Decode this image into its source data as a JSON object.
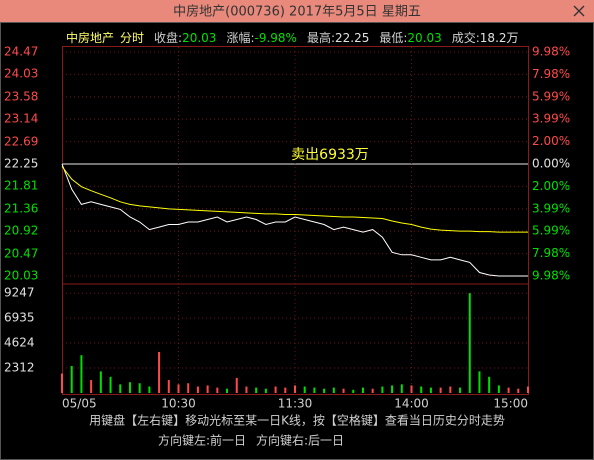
{
  "chart_data": {
    "type": "intraday",
    "title": "中房地产(000736) 2017年5月5日 星期五",
    "header": {
      "name": "中房地产",
      "period": "分时",
      "stats": [
        {
          "label": "收盘:",
          "value": "20.03",
          "color": "#00e000"
        },
        {
          "label": "涨幅:",
          "value": "-9.98%",
          "color": "#00e000"
        },
        {
          "label": "最高:",
          "value": "22.25",
          "color": "#e0e0e0"
        },
        {
          "label": "最低:",
          "value": "20.03",
          "color": "#00e000"
        },
        {
          "label": "成交:",
          "value": "18.2万",
          "color": "#e0e0e0"
        }
      ]
    },
    "annotation": "卖出6933万",
    "up_color": "#ff4a4a",
    "down_color": "#00e000",
    "flat_color": "#e0e0e0",
    "x": [
      0,
      5,
      10,
      15,
      20,
      25,
      30,
      35,
      40,
      45,
      50,
      55,
      60,
      65,
      70,
      75,
      80,
      85,
      90,
      95,
      100,
      105,
      110,
      115,
      120,
      125,
      130,
      135,
      140,
      145,
      150,
      155,
      160,
      165,
      170,
      175,
      180,
      185,
      190,
      195,
      200,
      205,
      210,
      215,
      220,
      225,
      230,
      235,
      240
    ],
    "xlim": [
      0,
      240
    ],
    "xticks": [
      {
        "value": 0,
        "label": "05/05"
      },
      {
        "value": 60,
        "label": "10:30"
      },
      {
        "value": 120,
        "label": "11:30"
      },
      {
        "value": 180,
        "label": "14:00"
      },
      {
        "value": 240,
        "label": "15:00"
      }
    ],
    "ylim": [
      20.03,
      24.47
    ],
    "yticks": [
      24.47,
      24.03,
      23.58,
      23.14,
      22.69,
      22.25,
      21.81,
      21.36,
      20.92,
      20.47,
      20.03
    ],
    "y2lim": [
      -9.98,
      9.98
    ],
    "y2ticks": [
      {
        "value": 9.98,
        "label": "9.98%"
      },
      {
        "value": 7.98,
        "label": "7.98%"
      },
      {
        "value": 5.99,
        "label": "5.99%"
      },
      {
        "value": 3.99,
        "label": "3.99%"
      },
      {
        "value": 2.0,
        "label": "2.00%"
      },
      {
        "value": 0,
        "label": "0.00%"
      },
      {
        "value": -2.0,
        "label": "2.00%"
      },
      {
        "value": -3.99,
        "label": "3.99%"
      },
      {
        "value": -5.99,
        "label": "5.99%"
      },
      {
        "value": -7.98,
        "label": "7.98%"
      },
      {
        "value": -9.98,
        "label": "9.98%"
      }
    ],
    "series": [
      {
        "color": "#ffffff",
        "values": [
          22.25,
          21.75,
          21.45,
          21.5,
          21.45,
          21.4,
          21.35,
          21.2,
          21.1,
          20.95,
          21.0,
          21.05,
          21.05,
          21.1,
          21.1,
          21.15,
          21.2,
          21.1,
          21.15,
          21.2,
          21.15,
          21.05,
          21.1,
          21.1,
          21.2,
          21.15,
          21.1,
          21.05,
          20.95,
          21.0,
          20.95,
          20.9,
          20.95,
          20.8,
          20.5,
          20.45,
          20.45,
          20.4,
          20.35,
          20.35,
          20.4,
          20.35,
          20.3,
          20.1,
          20.05,
          20.03,
          20.03,
          20.03,
          20.03
        ]
      },
      {
        "color": "#ffff00",
        "values": [
          22.2,
          21.95,
          21.8,
          21.72,
          21.65,
          21.58,
          21.5,
          21.45,
          21.42,
          21.4,
          21.38,
          21.36,
          21.35,
          21.34,
          21.33,
          21.32,
          21.31,
          21.3,
          21.29,
          21.28,
          21.27,
          21.26,
          21.26,
          21.25,
          21.25,
          21.24,
          21.23,
          21.22,
          21.21,
          21.2,
          21.2,
          21.19,
          21.18,
          21.17,
          21.12,
          21.08,
          21.05,
          21.0,
          20.96,
          20.94,
          20.93,
          20.92,
          20.92,
          20.91,
          20.91,
          20.9,
          20.9,
          20.9,
          20.9
        ]
      }
    ],
    "volume": {
      "ylim": [
        0,
        10000
      ],
      "yticks": [
        2312,
        4624,
        6935,
        9247
      ],
      "values": [
        1800,
        2500,
        3500,
        1200,
        2000,
        1500,
        800,
        1000,
        900,
        600,
        3800,
        1200,
        800,
        900,
        600,
        700,
        500,
        400,
        1400,
        600,
        500,
        400,
        600,
        500,
        700,
        600,
        500,
        400,
        500,
        400,
        300,
        500,
        400,
        600,
        700,
        800,
        700,
        600,
        500,
        500,
        600,
        500,
        9247,
        2000,
        1500,
        700,
        500,
        400,
        600
      ]
    },
    "footer": {
      "hint": "用键盘【左右键】移动光标至某一日K线，按【空格键】查看当日历史分时走势",
      "nav": [
        "方向键左:前一日",
        "方向键右:后一日"
      ]
    }
  }
}
